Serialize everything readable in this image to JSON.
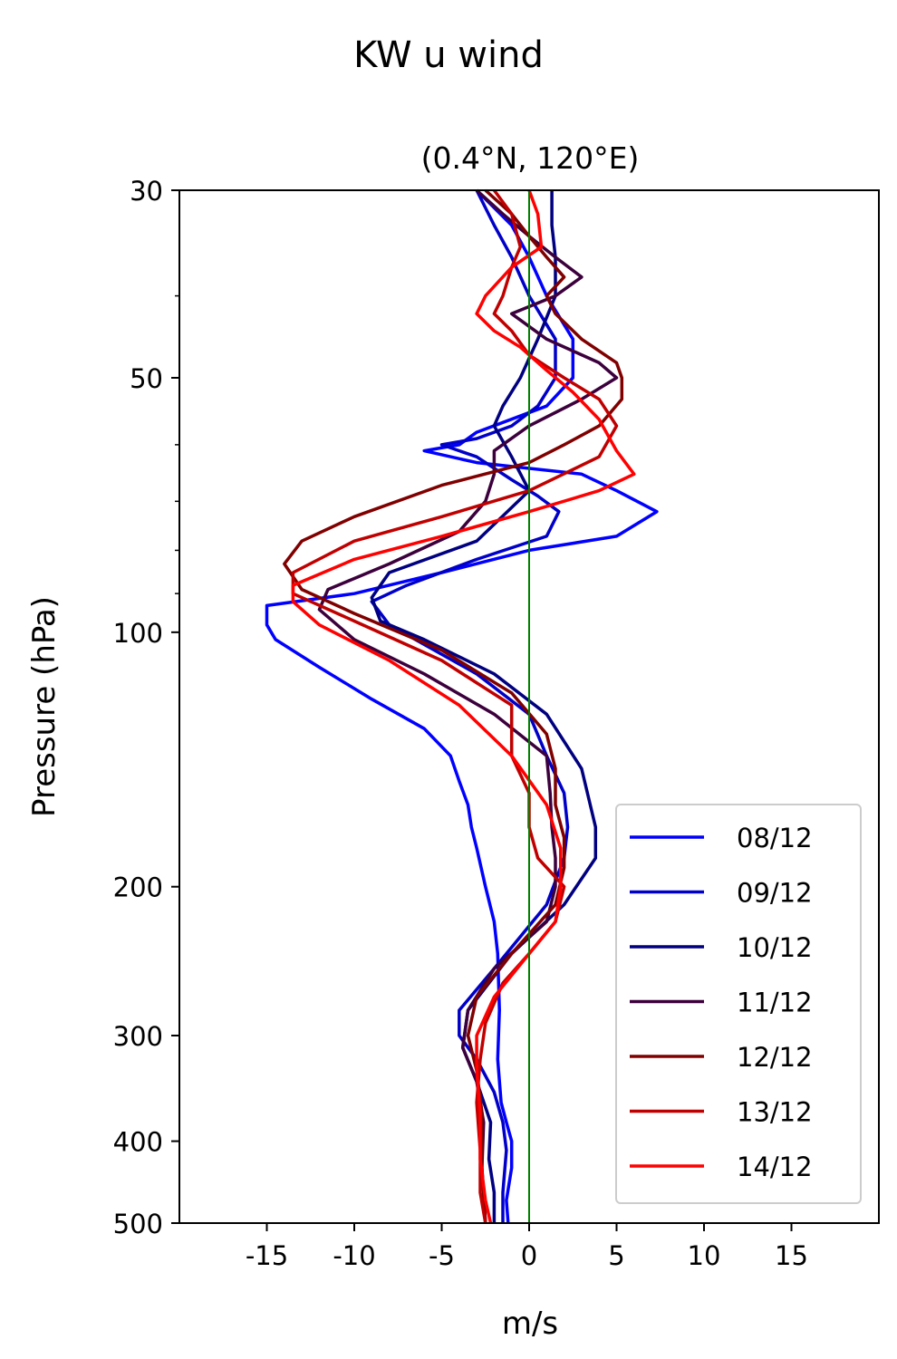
{
  "chart_data": {
    "type": "line",
    "title": "KW u wind",
    "subtitle": "(0.4°N, 120°E)",
    "xlabel": "m/s",
    "ylabel": "Pressure (hPa)",
    "xlim": [
      -20,
      20
    ],
    "ylim": [
      500,
      30
    ],
    "y_scale": "log",
    "y_inverted": true,
    "x_ticks": [
      -15,
      -10,
      -5,
      0,
      5,
      10,
      15
    ],
    "x_tick_labels": [
      "-15",
      "-10",
      "-5",
      "0",
      "5",
      "10",
      "15"
    ],
    "y_ticks": [
      30,
      50,
      100,
      200,
      300,
      400,
      500
    ],
    "y_tick_labels": [
      "30",
      "50",
      "100",
      "200",
      "300",
      "400",
      "500"
    ],
    "y_minor_ticks": [
      40,
      60,
      70,
      80,
      90
    ],
    "grid": false,
    "legend": "lower-right",
    "zero_line": {
      "x": 0,
      "color": "#008000"
    },
    "series": [
      {
        "name": "08/12",
        "color": "#0000ff",
        "x": [
          -3,
          -1,
          0,
          1,
          2.5,
          2.5,
          1,
          -3,
          -4,
          -6,
          -3,
          3,
          5,
          7.3,
          5,
          0,
          -5,
          -10,
          -15,
          -15,
          -14.5,
          -12,
          -9,
          -6,
          -4.5,
          -4,
          -3.5,
          -3.3,
          -3,
          -2.5,
          -2,
          -1.8,
          -1.7,
          -1.8,
          -1.6,
          -1.3,
          -1,
          -1,
          -1.3,
          -1.2
        ],
        "y": [
          30,
          33,
          36,
          40,
          45,
          50,
          54,
          58,
          60,
          61,
          63,
          65,
          68,
          72,
          77,
          80,
          85,
          90,
          93,
          98,
          102,
          110,
          120,
          130,
          140,
          150,
          160,
          170,
          180,
          200,
          220,
          240,
          280,
          320,
          360,
          380,
          400,
          430,
          470,
          500
        ]
      },
      {
        "name": "09/12",
        "color": "#0000c8",
        "x": [
          -3,
          -2,
          -1,
          0,
          1.5,
          1.5,
          0.5,
          -1,
          -3,
          -5,
          -3,
          -1,
          0.5,
          1.7,
          1,
          -3,
          -7,
          -9,
          -8,
          -3,
          0,
          1,
          2,
          2.2,
          2,
          1,
          -2,
          -4,
          -4,
          -3,
          -2,
          -1.5,
          -1.3,
          -1.5,
          -1.5
        ],
        "y": [
          30,
          33,
          36,
          40,
          45,
          50,
          54,
          57,
          59,
          60,
          62,
          66,
          69,
          72,
          77,
          82,
          88,
          92,
          98,
          112,
          125,
          140,
          155,
          170,
          185,
          210,
          250,
          280,
          300,
          320,
          350,
          380,
          410,
          460,
          500
        ]
      },
      {
        "name": "10/12",
        "color": "#000080",
        "x": [
          1.3,
          1.3,
          1.5,
          1.5,
          0.5,
          -0.5,
          -1.5,
          -2,
          -1,
          0,
          -3,
          -8,
          -9,
          -8.5,
          -6,
          -2,
          1,
          3,
          3.8,
          3.8,
          2,
          -1,
          -3.5,
          -3.8,
          -3,
          -2.2,
          -2.3,
          -2,
          -2
        ],
        "y": [
          30,
          33,
          36,
          40,
          45,
          50,
          54,
          57,
          62,
          68,
          78,
          85,
          91,
          97,
          102,
          112,
          125,
          145,
          170,
          185,
          210,
          240,
          280,
          310,
          340,
          380,
          420,
          460,
          500
        ]
      },
      {
        "name": "11/12",
        "color": "#3c003c",
        "x": [
          -3,
          -1.5,
          0,
          1.5,
          3,
          1.5,
          -1,
          1,
          4,
          5,
          3,
          0,
          -2,
          -2,
          -2.5,
          -4,
          -8,
          -11.5,
          -12,
          -10,
          -6,
          -2,
          1,
          1.2,
          1.3,
          1.5,
          1.5,
          1,
          -2,
          -3.5,
          -3.8,
          -3,
          -2.6,
          -2.7,
          -2.5
        ],
        "y": [
          30,
          32,
          34,
          36,
          38,
          40,
          42,
          45,
          48,
          50,
          53,
          57,
          61,
          65,
          70,
          76,
          83,
          89,
          94,
          102,
          112,
          125,
          140,
          155,
          170,
          185,
          200,
          220,
          250,
          280,
          310,
          340,
          380,
          430,
          500
        ]
      },
      {
        "name": "12/12",
        "color": "#800000",
        "x": [
          -2.5,
          -1,
          0,
          1,
          2,
          1,
          1.5,
          3,
          5,
          5.3,
          5.3,
          4,
          2,
          0,
          -5,
          -10,
          -13,
          -14,
          -13,
          -10,
          -5,
          -1,
          1,
          1.5,
          1.5,
          2,
          2,
          1.5,
          -1,
          -3,
          -3.5,
          -3,
          -2.7,
          -2.7,
          -2.5
        ],
        "y": [
          30,
          32,
          34,
          36,
          38,
          40,
          42,
          45,
          48,
          50,
          53,
          57,
          60,
          63,
          67,
          73,
          78,
          83,
          89,
          95,
          105,
          118,
          132,
          145,
          160,
          175,
          190,
          210,
          240,
          270,
          300,
          330,
          370,
          430,
          500
        ]
      },
      {
        "name": "13/12",
        "color": "#c00000",
        "x": [
          -2,
          -1,
          -0.5,
          -1,
          -1.5,
          -2,
          -1,
          0,
          2,
          4,
          5,
          4,
          0,
          -5,
          -10,
          -13.5,
          -13.5,
          -10,
          -5,
          -1,
          -1,
          0,
          0,
          0.5,
          2,
          1.5,
          0,
          -1.5,
          -2.5,
          -2.8,
          -3,
          -2.8,
          -2.8,
          -2.5
        ],
        "y": [
          30,
          32,
          35,
          37,
          40,
          42,
          44,
          47,
          50,
          53,
          57,
          62,
          68,
          73,
          78,
          85,
          90,
          97,
          108,
          122,
          140,
          155,
          170,
          185,
          200,
          220,
          240,
          260,
          290,
          320,
          360,
          410,
          460,
          500
        ]
      },
      {
        "name": "14/12",
        "color": "#ff0000",
        "x": [
          0,
          0.5,
          0.7,
          -1,
          -2.5,
          -3,
          -2,
          -0.5,
          1,
          2.5,
          4,
          5,
          6,
          4,
          0,
          -5,
          -10,
          -13.5,
          -13.5,
          -12,
          -8,
          -4,
          -1,
          1,
          1.8,
          1.8,
          1.5,
          0,
          -2,
          -3,
          -3,
          -2.8,
          -2.8,
          -2.5,
          -2.2
        ],
        "y": [
          30,
          32,
          35,
          37,
          40,
          42,
          44,
          46,
          49,
          52,
          56,
          61,
          65,
          68,
          72,
          77,
          82,
          88,
          92,
          98,
          108,
          122,
          140,
          160,
          180,
          200,
          220,
          240,
          270,
          300,
          330,
          370,
          420,
          470,
          500
        ]
      }
    ]
  }
}
